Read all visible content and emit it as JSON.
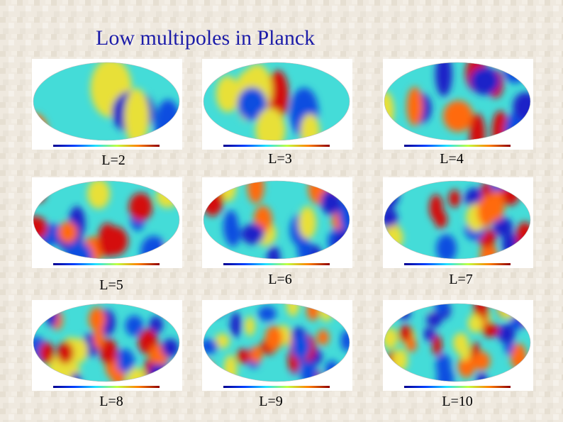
{
  "title": "Low multipoles in Planck",
  "panels": [
    {
      "label": "L=2"
    },
    {
      "label": "L=3"
    },
    {
      "label": "L=4"
    },
    {
      "label": "L=5"
    },
    {
      "label": "L=6"
    },
    {
      "label": "L=7"
    },
    {
      "label": "L=8"
    },
    {
      "label": "L=9"
    },
    {
      "label": "L=10"
    }
  ]
}
